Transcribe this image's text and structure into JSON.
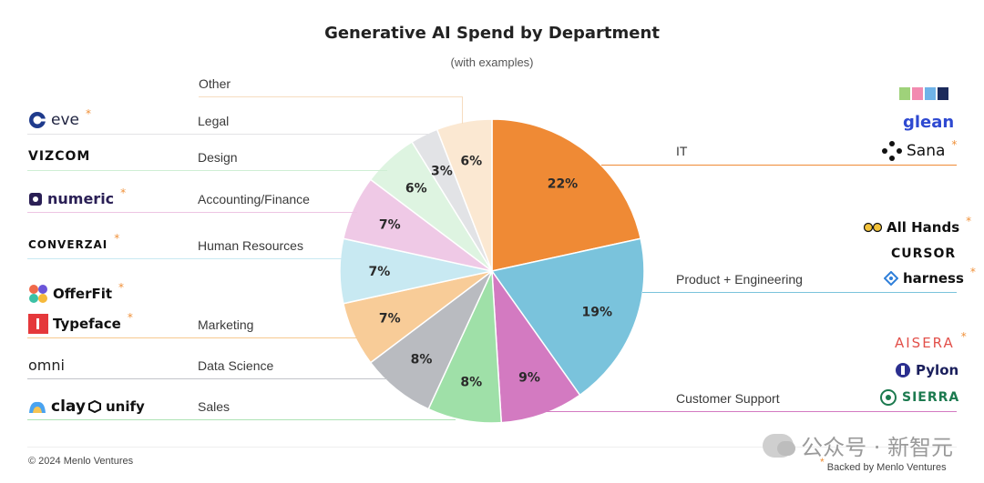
{
  "header": {
    "title": "Generative AI Spend by Department",
    "subtitle": "(with examples)"
  },
  "chart_data": {
    "type": "pie",
    "title": "Generative AI Spend by Department",
    "subtitle": "(with examples)",
    "slices": [
      {
        "label": "IT",
        "value": 22,
        "value_label": "22%",
        "color": "#ef8a35"
      },
      {
        "label": "Product + Engineering",
        "value": 19,
        "value_label": "19%",
        "color": "#7ac3dc"
      },
      {
        "label": "Customer Support",
        "value": 9,
        "value_label": "9%",
        "color": "#d37ac1"
      },
      {
        "label": "Sales",
        "value": 8,
        "value_label": "8%",
        "color": "#9fe0a8"
      },
      {
        "label": "Data Science",
        "value": 8,
        "value_label": "8%",
        "color": "#b9bbc0"
      },
      {
        "label": "Marketing",
        "value": 7,
        "value_label": "7%",
        "color": "#f8cc98"
      },
      {
        "label": "Human Resources",
        "value": 7,
        "value_label": "7%",
        "color": "#c8e9f2"
      },
      {
        "label": "Accounting/Finance",
        "value": 7,
        "value_label": "7%",
        "color": "#efc9e6"
      },
      {
        "label": "Design",
        "value": 6,
        "value_label": "6%",
        "color": "#def4e1"
      },
      {
        "label": "Legal",
        "value": 3,
        "value_label": "3%",
        "color": "#e2e3e6"
      },
      {
        "label": "Other",
        "value": 6,
        "value_label": "6%",
        "color": "#fbe8d2"
      }
    ]
  },
  "departments": {
    "other": "Other",
    "legal": "Legal",
    "design": "Design",
    "accounting": "Accounting/Finance",
    "hr": "Human Resources",
    "marketing": "Marketing",
    "data_science": "Data Science",
    "sales": "Sales",
    "it": "IT",
    "product": "Product + Engineering",
    "support": "Customer Support"
  },
  "logos": {
    "eve": "eve",
    "vizcom": "VIZCOM",
    "numeric": "numeric",
    "converzai": "CONVERZAI",
    "offerfit": "OfferFit",
    "typeface": "Typeface",
    "omni": "omni",
    "clay": "clay",
    "unify": "unify",
    "dust": "DUST",
    "glean": "glean",
    "sana": "Sana",
    "allhands": "All Hands",
    "cursor": "CURSOR",
    "harness": "harness",
    "aisera": "AISERA",
    "pylon": "Pylon",
    "sierra": "SIERRA"
  },
  "footer": {
    "copyright": "© 2024 Menlo Ventures",
    "backed_by": "Backed by Menlo Ventures",
    "backed_star": "*"
  },
  "watermark": "公众号 · 新智元",
  "star": "*"
}
